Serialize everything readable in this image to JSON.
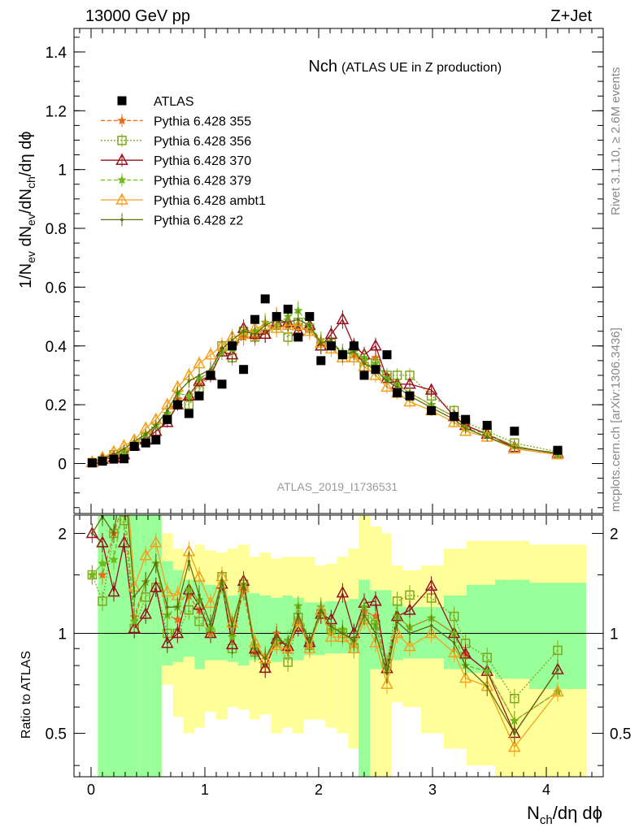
{
  "header": {
    "left": "13000 GeV pp",
    "right": "Z+Jet"
  },
  "side_labels": {
    "rivet": "Rivet 3.1.10, ≥ 2.6M events",
    "mcplots": "mcplots.cern.ch [arXiv:1306.3436]"
  },
  "chart_data": {
    "type": "scatter",
    "title_main": "Nch",
    "title_sub": "(ATLAS UE in Z production)",
    "analysis_id": "ATLAS_2019_I1736531",
    "xlabel": "N_ch/dη dϕ",
    "ylabel_main": "1/N_ev dN_ev/dN_ch/dη dϕ",
    "ylabel_ratio": "Ratio to ATLAS",
    "xlim": [
      -0.15,
      4.5
    ],
    "ylim_main": [
      -0.17,
      1.48
    ],
    "ylim_ratio": [
      0.37,
      2.27
    ],
    "x_ticks": [
      "0",
      "1",
      "2",
      "3",
      "4"
    ],
    "y_ticks_main": [
      "0",
      "0.2",
      "0.4",
      "0.6",
      "0.8",
      "1",
      "1.2",
      "1.4"
    ],
    "y_ticks_ratio": [
      "0.5",
      "1",
      "2"
    ],
    "legend": [
      {
        "name": "ATLAS",
        "color": "#000000",
        "marker": "square",
        "dash": "none"
      },
      {
        "name": "Pythia 6.428 355",
        "color": "#ee6a1a",
        "marker": "star",
        "dash": "5,3"
      },
      {
        "name": "Pythia 6.428 356",
        "color": "#7ea81f",
        "marker": "open-square",
        "dash": "2,2"
      },
      {
        "name": "Pythia 6.428 370",
        "color": "#99101e",
        "marker": "open-triangle",
        "dash": "none"
      },
      {
        "name": "Pythia 6.428 379",
        "color": "#6dba1a",
        "marker": "star",
        "dash": "5,3"
      },
      {
        "name": "Pythia 6.428 ambt1",
        "color": "#f2a11c",
        "marker": "open-triangle",
        "dash": "none"
      },
      {
        "name": "Pythia 6.428 z2",
        "color": "#5e6d0d",
        "marker": "dot",
        "dash": "none"
      }
    ],
    "series": [
      {
        "name": "ATLAS",
        "x": [
          0.01,
          0.1,
          0.2,
          0.29,
          0.38,
          0.48,
          0.57,
          0.67,
          0.76,
          0.86,
          0.95,
          1.05,
          1.15,
          1.24,
          1.34,
          1.44,
          1.53,
          1.63,
          1.73,
          1.82,
          1.92,
          2.02,
          2.11,
          2.21,
          2.31,
          2.4,
          2.5,
          2.6,
          2.69,
          2.8,
          2.99,
          3.19,
          3.29,
          3.48,
          3.72,
          4.1
        ],
        "y": [
          0.002,
          0.008,
          0.015,
          0.016,
          0.058,
          0.07,
          0.08,
          0.15,
          0.2,
          0.17,
          0.23,
          0.3,
          0.27,
          0.4,
          0.32,
          0.49,
          0.56,
          0.5,
          0.525,
          0.43,
          0.5,
          0.35,
          0.4,
          0.37,
          0.4,
          0.3,
          0.32,
          0.37,
          0.24,
          0.23,
          0.18,
          0.16,
          0.15,
          0.13,
          0.11,
          0.045
        ]
      },
      {
        "name": "Pythia 6.428 355",
        "x": [
          0.01,
          0.1,
          0.2,
          0.29,
          0.38,
          0.48,
          0.57,
          0.67,
          0.76,
          0.86,
          0.95,
          1.05,
          1.15,
          1.24,
          1.34,
          1.44,
          1.53,
          1.63,
          1.73,
          1.82,
          1.92,
          2.02,
          2.11,
          2.21,
          2.31,
          2.4,
          2.5,
          2.6,
          2.69,
          2.8,
          2.99,
          3.19,
          3.29,
          3.48,
          3.72,
          4.1
        ],
        "y": [
          0.003,
          0.012,
          0.03,
          0.04,
          0.065,
          0.1,
          0.13,
          0.17,
          0.22,
          0.22,
          0.27,
          0.3,
          0.38,
          0.39,
          0.43,
          0.43,
          0.45,
          0.5,
          0.47,
          0.47,
          0.46,
          0.41,
          0.41,
          0.38,
          0.37,
          0.35,
          0.36,
          0.3,
          0.27,
          0.24,
          0.2,
          0.16,
          0.13,
          0.1,
          0.06,
          0.03
        ]
      },
      {
        "name": "Pythia 6.428 356",
        "x": [
          0.01,
          0.1,
          0.2,
          0.29,
          0.38,
          0.48,
          0.57,
          0.67,
          0.76,
          0.86,
          0.95,
          1.05,
          1.15,
          1.24,
          1.34,
          1.44,
          1.53,
          1.63,
          1.73,
          1.82,
          1.92,
          2.02,
          2.11,
          2.21,
          2.31,
          2.4,
          2.5,
          2.6,
          2.69,
          2.8,
          2.99,
          3.19,
          3.29,
          3.48,
          3.72,
          4.1
        ],
        "y": [
          0.003,
          0.01,
          0.03,
          0.035,
          0.06,
          0.09,
          0.11,
          0.15,
          0.2,
          0.2,
          0.25,
          0.3,
          0.4,
          0.36,
          0.45,
          0.43,
          0.44,
          0.47,
          0.43,
          0.48,
          0.46,
          0.4,
          0.41,
          0.37,
          0.36,
          0.33,
          0.34,
          0.3,
          0.3,
          0.3,
          0.23,
          0.18,
          0.14,
          0.11,
          0.07,
          0.04
        ]
      },
      {
        "name": "Pythia 6.428 370",
        "x": [
          0.01,
          0.1,
          0.2,
          0.29,
          0.38,
          0.48,
          0.57,
          0.67,
          0.76,
          0.86,
          0.95,
          1.05,
          1.15,
          1.24,
          1.34,
          1.44,
          1.53,
          1.63,
          1.73,
          1.82,
          1.92,
          2.02,
          2.11,
          2.21,
          2.31,
          2.4,
          2.5,
          2.6,
          2.69,
          2.8,
          2.99,
          3.19,
          3.29,
          3.48,
          3.72,
          4.1
        ],
        "y": [
          0.004,
          0.015,
          0.02,
          0.03,
          0.06,
          0.08,
          0.11,
          0.14,
          0.2,
          0.23,
          0.28,
          0.3,
          0.38,
          0.37,
          0.46,
          0.44,
          0.44,
          0.48,
          0.48,
          0.45,
          0.47,
          0.4,
          0.44,
          0.49,
          0.4,
          0.37,
          0.4,
          0.29,
          0.27,
          0.27,
          0.25,
          0.16,
          0.13,
          0.1,
          0.055,
          0.035
        ]
      },
      {
        "name": "Pythia 6.428 379",
        "x": [
          0.01,
          0.1,
          0.2,
          0.29,
          0.38,
          0.48,
          0.57,
          0.67,
          0.76,
          0.86,
          0.95,
          1.05,
          1.15,
          1.24,
          1.34,
          1.44,
          1.53,
          1.63,
          1.73,
          1.82,
          1.92,
          2.02,
          2.11,
          2.21,
          2.31,
          2.4,
          2.5,
          2.6,
          2.69,
          2.8,
          2.99,
          3.19,
          3.29,
          3.48,
          3.72,
          4.1
        ],
        "y": [
          0.003,
          0.013,
          0.025,
          0.04,
          0.063,
          0.1,
          0.13,
          0.17,
          0.24,
          0.23,
          0.29,
          0.31,
          0.38,
          0.39,
          0.45,
          0.45,
          0.48,
          0.47,
          0.5,
          0.52,
          0.47,
          0.42,
          0.41,
          0.38,
          0.38,
          0.36,
          0.34,
          0.29,
          0.27,
          0.24,
          0.2,
          0.16,
          0.12,
          0.1,
          0.06,
          0.03
        ]
      },
      {
        "name": "Pythia 6.428 ambt1",
        "x": [
          0.01,
          0.1,
          0.2,
          0.29,
          0.38,
          0.48,
          0.57,
          0.67,
          0.76,
          0.86,
          0.95,
          1.05,
          1.15,
          1.24,
          1.34,
          1.44,
          1.53,
          1.63,
          1.73,
          1.82,
          1.92,
          2.02,
          2.11,
          2.21,
          2.31,
          2.4,
          2.5,
          2.6,
          2.69,
          2.8,
          2.99,
          3.19,
          3.29,
          3.48,
          3.72,
          4.1
        ],
        "y": [
          0.005,
          0.02,
          0.04,
          0.06,
          0.08,
          0.12,
          0.15,
          0.2,
          0.26,
          0.3,
          0.34,
          0.37,
          0.4,
          0.43,
          0.44,
          0.46,
          0.47,
          0.46,
          0.47,
          0.47,
          0.45,
          0.41,
          0.39,
          0.36,
          0.36,
          0.33,
          0.3,
          0.26,
          0.24,
          0.21,
          0.18,
          0.14,
          0.11,
          0.09,
          0.05,
          0.03
        ]
      },
      {
        "name": "Pythia 6.428 z2",
        "x": [
          0.01,
          0.1,
          0.2,
          0.29,
          0.38,
          0.48,
          0.57,
          0.67,
          0.76,
          0.86,
          0.95,
          1.05,
          1.15,
          1.24,
          1.34,
          1.44,
          1.53,
          1.63,
          1.73,
          1.82,
          1.92,
          2.02,
          2.11,
          2.21,
          2.31,
          2.4,
          2.5,
          2.6,
          2.69,
          2.8,
          2.99,
          3.19,
          3.29,
          3.48,
          3.72,
          4.1
        ],
        "y": [
          0.004,
          0.018,
          0.03,
          0.05,
          0.075,
          0.1,
          0.13,
          0.18,
          0.24,
          0.28,
          0.3,
          0.32,
          0.39,
          0.42,
          0.45,
          0.44,
          0.47,
          0.49,
          0.48,
          0.49,
          0.47,
          0.41,
          0.42,
          0.37,
          0.38,
          0.34,
          0.32,
          0.28,
          0.26,
          0.23,
          0.19,
          0.15,
          0.12,
          0.09,
          0.055,
          0.035
        ]
      }
    ],
    "ratio_bands": {
      "x_edges": [
        0.06,
        0.15,
        0.24,
        0.34,
        0.43,
        0.52,
        0.62,
        0.72,
        0.81,
        0.91,
        1.0,
        1.1,
        1.2,
        1.29,
        1.39,
        1.48,
        1.58,
        1.68,
        1.77,
        1.87,
        1.97,
        2.06,
        2.16,
        2.26,
        2.35,
        2.45,
        2.55,
        2.64,
        2.74,
        2.9,
        3.1,
        3.3,
        3.55,
        3.85,
        4.35
      ],
      "green_lo": [
        0.37,
        0.37,
        0.37,
        0.37,
        0.37,
        0.37,
        0.8,
        0.82,
        0.85,
        0.78,
        0.83,
        0.83,
        0.82,
        0.8,
        0.83,
        0.86,
        0.82,
        0.83,
        0.83,
        0.86,
        0.86,
        0.87,
        0.87,
        0.87,
        0.37,
        0.78,
        0.78,
        0.83,
        0.84,
        0.84,
        0.78,
        0.76,
        0.73,
        0.68,
        0.6
      ],
      "green_hi": [
        2.27,
        2.27,
        2.27,
        2.27,
        2.27,
        2.27,
        1.65,
        1.55,
        1.45,
        1.45,
        1.4,
        1.35,
        1.3,
        1.4,
        1.32,
        1.3,
        1.28,
        1.3,
        1.28,
        1.24,
        1.24,
        1.25,
        1.25,
        1.27,
        1.45,
        1.35,
        1.35,
        1.23,
        1.2,
        1.2,
        1.3,
        1.4,
        1.45,
        1.42,
        1.45
      ],
      "yellow_lo": [
        0.37,
        0.37,
        0.37,
        0.37,
        0.37,
        0.37,
        0.7,
        0.56,
        0.5,
        0.52,
        0.58,
        0.55,
        0.6,
        0.59,
        0.55,
        0.57,
        0.5,
        0.52,
        0.5,
        0.55,
        0.55,
        0.52,
        0.5,
        0.45,
        0.37,
        0.37,
        0.37,
        0.62,
        0.6,
        0.5,
        0.45,
        0.4,
        0.37,
        0.37,
        0.37
      ],
      "yellow_hi": [
        2.27,
        2.27,
        2.27,
        2.27,
        2.27,
        2.27,
        2.0,
        1.8,
        1.75,
        1.85,
        1.78,
        1.75,
        1.8,
        1.85,
        1.7,
        1.75,
        1.68,
        1.7,
        1.7,
        1.7,
        1.6,
        1.62,
        1.7,
        1.8,
        2.27,
        2.1,
        2.0,
        1.6,
        1.55,
        1.6,
        1.8,
        1.9,
        1.9,
        1.85,
        1.8
      ]
    }
  }
}
